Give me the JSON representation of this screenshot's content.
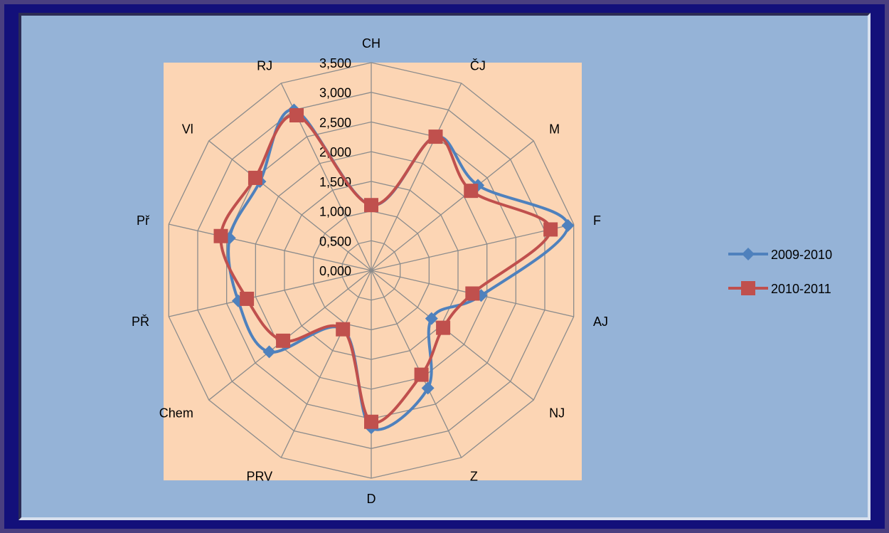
{
  "chart_data": {
    "type": "radar",
    "categories": [
      "CH",
      "ČJ",
      "M",
      "F",
      "AJ",
      "NJ",
      "Z",
      "D",
      "PRV",
      "Chem",
      "PŘ",
      "Př",
      "Vl",
      "RJ"
    ],
    "series": [
      {
        "name": "2009-2010",
        "color": "#4f81bd",
        "marker": "diamond",
        "values": [
          1.1,
          2.5,
          2.3,
          3.4,
          1.9,
          1.3,
          2.2,
          2.65,
          1.1,
          2.2,
          2.3,
          2.45,
          2.4,
          3.0
        ]
      },
      {
        "name": "2010-2011",
        "color": "#c0504d",
        "marker": "square",
        "values": [
          1.1,
          2.5,
          2.15,
          3.1,
          1.75,
          1.55,
          1.95,
          2.55,
          1.1,
          1.9,
          2.15,
          2.6,
          2.5,
          2.9
        ]
      }
    ],
    "r_axis": {
      "ticks": [
        "0,000",
        "0,500",
        "1,000",
        "1,500",
        "2,000",
        "2,500",
        "3,000",
        "3,500"
      ],
      "range": [
        0,
        3.5
      ]
    },
    "grid": true,
    "legend": "right",
    "colors": {
      "background": "#95b3d7",
      "plot_area": "#fcd5b4",
      "grid": "#8c8c8c"
    }
  }
}
